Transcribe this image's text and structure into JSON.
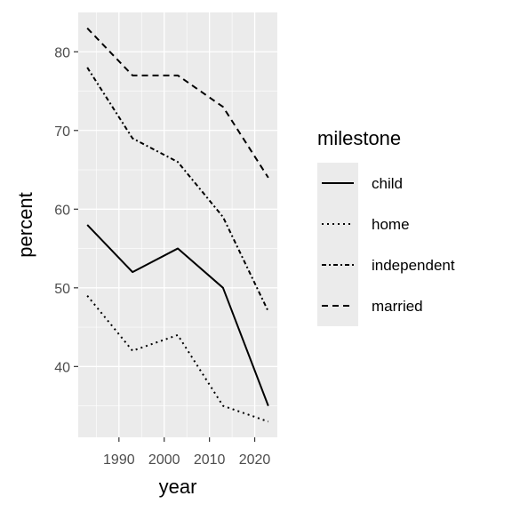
{
  "chart_data": {
    "type": "line",
    "xlabel": "year",
    "ylabel": "percent",
    "x": [
      1983,
      1993,
      2003,
      2013,
      2023
    ],
    "xlim": [
      1981,
      2025
    ],
    "ylim": [
      31,
      85
    ],
    "x_ticks": [
      1990,
      2000,
      2010,
      2020
    ],
    "x_tick_labels": [
      "1990",
      "2000",
      "2010",
      "2020"
    ],
    "y_ticks": [
      40,
      50,
      60,
      70,
      80
    ],
    "y_tick_labels": [
      "40",
      "50",
      "60",
      "70",
      "80"
    ],
    "grid": true,
    "legend": {
      "title": "milestone",
      "placement": "right"
    },
    "series": [
      {
        "name": "child",
        "values": [
          58,
          52,
          55,
          50,
          35
        ],
        "linetype": "solid"
      },
      {
        "name": "home",
        "values": [
          49,
          42,
          44,
          35,
          33
        ],
        "linetype": "dotted"
      },
      {
        "name": "independent",
        "values": [
          78,
          69,
          66,
          59,
          47
        ],
        "linetype": "dashdot"
      },
      {
        "name": "married",
        "values": [
          83,
          77,
          77,
          73,
          64
        ],
        "linetype": "dashed"
      }
    ],
    "colors": {
      "panel_background": "#ebebeb",
      "grid_major": "#ffffff",
      "line": "#000000",
      "legend_key_background": "#ebebeb"
    }
  }
}
